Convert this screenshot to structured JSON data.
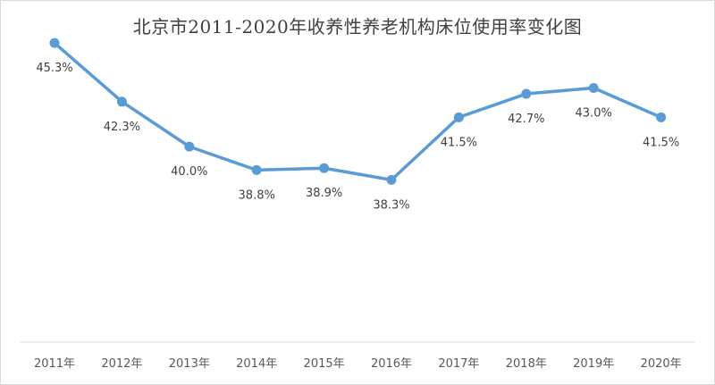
{
  "chart_data": {
    "type": "line",
    "title": "北京市2011-2020年收养性养老机构床位使用率变化图",
    "categories": [
      "2011年",
      "2012年",
      "2013年",
      "2014年",
      "2015年",
      "2016年",
      "2017年",
      "2018年",
      "2019年",
      "2020年"
    ],
    "values": [
      45.3,
      42.3,
      40.0,
      38.8,
      38.9,
      38.3,
      41.5,
      42.7,
      43.0,
      41.5
    ],
    "data_labels": [
      "45.3%",
      "42.3%",
      "40.0%",
      "38.8%",
      "38.9%",
      "38.3%",
      "41.5%",
      "42.7%",
      "43.0%",
      "41.5%"
    ],
    "xlabel": "",
    "ylabel": "",
    "ylim": [
      30,
      47.5
    ],
    "grid": false,
    "legend": "none",
    "line_color": "#5b9bd5"
  }
}
